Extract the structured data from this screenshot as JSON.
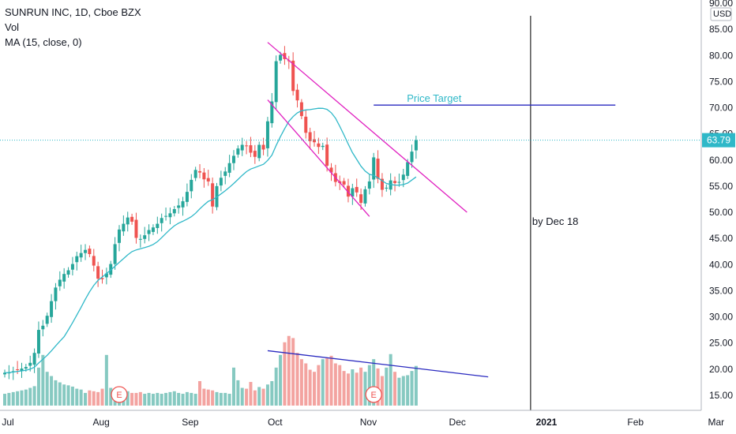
{
  "legend": {
    "symbol": "SUNRUN INC, 1D, Cboe BZX",
    "volume": "Vol",
    "ma": "MA (15, close, 0)"
  },
  "colors": {
    "up": "#26a69a",
    "down": "#ef5350",
    "up_volume": "#86c9c1",
    "down_volume": "#f3a3a0",
    "ma_line": "#2fb8c8",
    "channel": "#e020c0",
    "trendline": "#2a2ac0",
    "vertical_line": "#222222",
    "price_label": "#2fb8c8",
    "price_target_text": "#2fb8c8"
  },
  "currency": "USD",
  "last_price": "63.79",
  "annotations": {
    "price_target": "Price Target",
    "by_date": "by Dec 18"
  },
  "earnings_marker": "E",
  "chart_data": {
    "type": "candlestick",
    "ylim": [
      10,
      90
    ],
    "y_ticks": [
      "15.00",
      "20.00",
      "25.00",
      "30.00",
      "35.00",
      "40.00",
      "45.00",
      "50.00",
      "55.00",
      "60.00",
      "65.00",
      "70.00",
      "75.00",
      "80.00",
      "85.00",
      "90.00"
    ],
    "x_labels": [
      "Jul",
      "Aug",
      "Sep",
      "Oct",
      "Nov",
      "Dec",
      "2021",
      "Feb",
      "Mar"
    ],
    "ma_period": 15,
    "closes": [
      19.3,
      19.4,
      19.6,
      19.9,
      20.1,
      20.4,
      21.2,
      23.1,
      27.5,
      28.3,
      30.2,
      33.0,
      35.6,
      37.1,
      38.2,
      38.9,
      40.1,
      41.6,
      42.2,
      42.8,
      42.0,
      39.8,
      37.3,
      37.2,
      38.3,
      40.1,
      43.9,
      46.7,
      47.8,
      49.0,
      48.2,
      45.1,
      44.9,
      45.6,
      46.6,
      47.1,
      47.8,
      48.9,
      49.3,
      49.8,
      50.6,
      51.3,
      52.1,
      53.9,
      56.2,
      58.1,
      57.6,
      56.3,
      55.9,
      51.1,
      55.0,
      56.6,
      57.8,
      59.4,
      60.8,
      62.2,
      62.9,
      62.7,
      61.4,
      60.6,
      62.9,
      62.0,
      67.4,
      71.2,
      78.9,
      80.1,
      79.3,
      79.0,
      73.2,
      71.4,
      68.4,
      65.2,
      63.6,
      63.4,
      62.5,
      62.7,
      58.9,
      57.6,
      55.8,
      55.6,
      55.3,
      53.0,
      54.6,
      53.8,
      51.8,
      54.4,
      55.9,
      60.5,
      56.4,
      54.3,
      54.7,
      56.1,
      55.6,
      55.8,
      57.2,
      59.6,
      61.6,
      63.8
    ],
    "volume_ylim": [
      0,
      400
    ],
    "volumes": [
      28,
      30,
      32,
      34,
      36,
      38,
      42,
      46,
      90,
      120,
      80,
      70,
      60,
      55,
      50,
      48,
      45,
      40,
      38,
      30,
      36,
      34,
      32,
      40,
      120,
      42,
      38,
      36,
      35,
      34,
      30,
      30,
      32,
      28,
      30,
      28,
      30,
      28,
      30,
      32,
      34,
      30,
      28,
      32,
      30,
      28,
      58,
      40,
      38,
      36,
      32,
      30,
      30,
      28,
      90,
      60,
      42,
      40,
      56,
      36,
      44,
      40,
      50,
      58,
      90,
      120,
      150,
      165,
      160,
      125,
      110,
      100,
      85,
      80,
      96,
      110,
      112,
      118,
      100,
      96,
      82,
      76,
      86,
      78,
      90,
      80,
      96,
      110,
      88,
      70,
      90,
      122,
      80,
      66,
      70,
      72,
      82,
      94
    ],
    "price_target_value": 70.5,
    "channel_upper": [
      [
        62,
        82.5
      ],
      [
        109,
        50
      ]
    ],
    "channel_lower": [
      [
        62,
        71.5
      ],
      [
        86,
        49.2
      ]
    ],
    "volume_trend": [
      [
        62,
        130
      ],
      [
        114,
        68
      ]
    ],
    "vertical_line_index": 124,
    "price_target_line": [
      [
        87,
        70.5
      ],
      [
        144,
        70.5
      ]
    ],
    "earnings_at": [
      27,
      87
    ],
    "x_label_index": [
      0,
      22,
      43,
      63,
      85,
      106,
      127,
      148,
      167
    ]
  }
}
